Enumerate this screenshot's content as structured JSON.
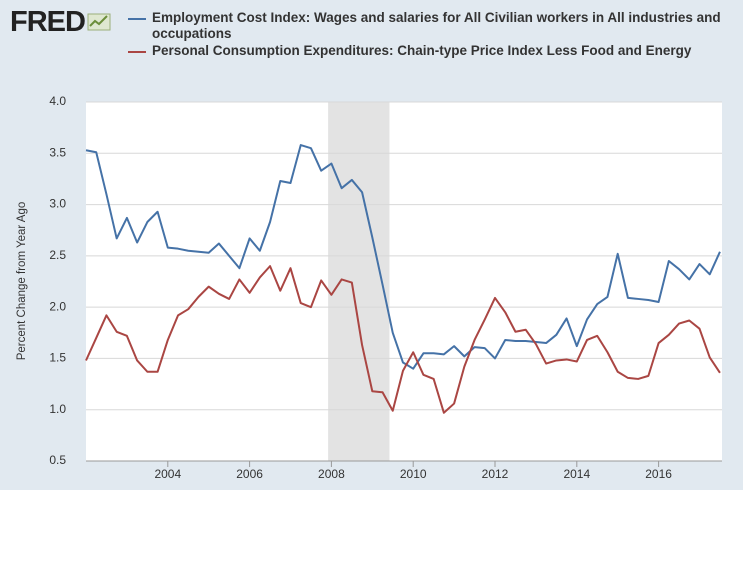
{
  "logo": "FRED",
  "chart_data": {
    "type": "line",
    "y_label": "Percent Change from Year Ago",
    "x": [
      2002,
      2002.25,
      2002.5,
      2002.75,
      2003,
      2003.25,
      2003.5,
      2003.75,
      2004,
      2004.25,
      2004.5,
      2004.75,
      2005,
      2005.25,
      2005.5,
      2005.75,
      2006,
      2006.25,
      2006.5,
      2006.75,
      2007,
      2007.25,
      2007.5,
      2007.75,
      2008,
      2008.25,
      2008.5,
      2008.75,
      2009,
      2009.25,
      2009.5,
      2009.75,
      2010,
      2010.25,
      2010.5,
      2010.75,
      2011,
      2011.25,
      2011.5,
      2011.75,
      2012,
      2012.25,
      2012.5,
      2012.75,
      2013,
      2013.25,
      2013.5,
      2013.75,
      2014,
      2014.25,
      2014.5,
      2014.75,
      2015,
      2015.25,
      2015.5,
      2015.75,
      2016,
      2016.25,
      2016.5,
      2016.75,
      2017,
      2017.25,
      2017.5
    ],
    "series": [
      {
        "name": "Employment Cost Index: Wages and salaries for All Civilian workers in All industries and occupations",
        "color": "#4572a7",
        "values": [
          3.53,
          3.51,
          3.1,
          2.67,
          2.87,
          2.63,
          2.83,
          2.93,
          2.58,
          2.57,
          2.55,
          2.54,
          2.53,
          2.62,
          2.5,
          2.38,
          2.67,
          2.55,
          2.83,
          3.23,
          3.21,
          3.58,
          3.55,
          3.33,
          3.4,
          3.16,
          3.24,
          3.12,
          2.68,
          2.22,
          1.75,
          1.46,
          1.4,
          1.55,
          1.55,
          1.54,
          1.62,
          1.52,
          1.61,
          1.6,
          1.5,
          1.68,
          1.67,
          1.67,
          1.66,
          1.65,
          1.73,
          1.89,
          1.62,
          1.88,
          2.03,
          2.1,
          2.52,
          2.09,
          2.08,
          2.07,
          2.05,
          2.45,
          2.37,
          2.27,
          2.42,
          2.32,
          2.54
        ]
      },
      {
        "name": "Personal Consumption Expenditures: Chain-type Price Index Less Food and Energy",
        "color": "#aa4643",
        "values": [
          1.48,
          1.7,
          1.92,
          1.76,
          1.72,
          1.48,
          1.37,
          1.37,
          1.68,
          1.92,
          1.98,
          2.1,
          2.2,
          2.13,
          2.08,
          2.27,
          2.14,
          2.29,
          2.4,
          2.16,
          2.38,
          2.04,
          2.0,
          2.26,
          2.12,
          2.27,
          2.24,
          1.63,
          1.18,
          1.17,
          0.99,
          1.38,
          1.56,
          1.34,
          1.3,
          0.97,
          1.06,
          1.42,
          1.68,
          1.88,
          2.09,
          1.95,
          1.76,
          1.78,
          1.64,
          1.45,
          1.48,
          1.49,
          1.47,
          1.68,
          1.72,
          1.56,
          1.37,
          1.31,
          1.3,
          1.33,
          1.65,
          1.73,
          1.84,
          1.87,
          1.79,
          1.51,
          1.36
        ]
      }
    ],
    "recession": [
      2007.92,
      2009.42
    ],
    "recession_color": "#e3e3e3",
    "xlim": [
      2002,
      2017.55
    ],
    "xticks": [
      2004,
      2006,
      2008,
      2010,
      2012,
      2014,
      2016
    ],
    "ylim": [
      0.5,
      4.0
    ],
    "yticks": [
      0.5,
      {
        "value": 1.0,
        "label": "1.0"
      },
      1.5,
      {
        "value": 2.0,
        "label": "2.0"
      },
      2.5,
      {
        "value": 3.0,
        "label": "3.0"
      },
      3.5,
      {
        "value": 4.0,
        "label": "4.0"
      }
    ],
    "grid": true
  }
}
